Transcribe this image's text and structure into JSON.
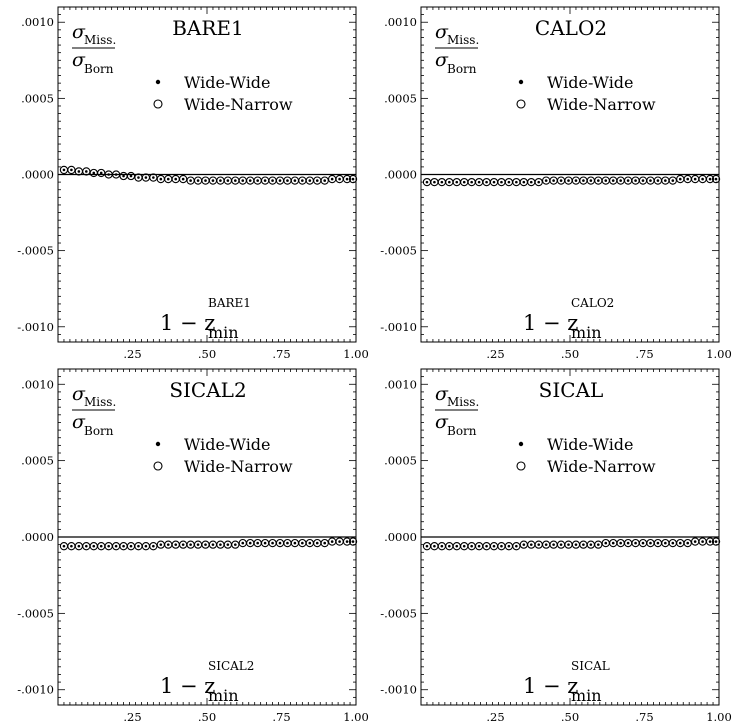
{
  "chart_data": [
    {
      "type": "scatter",
      "title": "BARE1",
      "ylabel_num": "σ",
      "ylabel_num_sub": "Miss.",
      "ylabel_den": "σ",
      "ylabel_den_sub": "Born",
      "xlabel_main": "1 − z",
      "xlabel_sub": "min",
      "xlabel_sup": "BARE1",
      "xlim": [
        0.0,
        1.0
      ],
      "ylim": [
        -0.0011,
        0.0011
      ],
      "xtick_labels": [
        ".25",
        ".50",
        ".75",
        "1.00"
      ],
      "xtick_values": [
        0.25,
        0.5,
        0.75,
        1.0
      ],
      "ytick_labels": [
        ".0010",
        ".0005",
        ".0000",
        "-.0005",
        "-.0010"
      ],
      "ytick_values": [
        0.001,
        0.0005,
        0.0,
        -0.0005,
        -0.001
      ],
      "legend_position": "top-center",
      "series": [
        {
          "name": "Wide-Wide",
          "marker": "dot",
          "x": [
            0.02,
            0.045,
            0.07,
            0.095,
            0.12,
            0.145,
            0.17,
            0.195,
            0.22,
            0.245,
            0.27,
            0.295,
            0.32,
            0.345,
            0.37,
            0.395,
            0.42,
            0.445,
            0.47,
            0.495,
            0.52,
            0.545,
            0.57,
            0.595,
            0.62,
            0.645,
            0.67,
            0.695,
            0.72,
            0.745,
            0.77,
            0.795,
            0.82,
            0.845,
            0.87,
            0.895,
            0.92,
            0.945,
            0.97,
            0.99
          ],
          "y": [
            3e-05,
            3e-05,
            2e-05,
            2e-05,
            1e-05,
            1e-05,
            0.0,
            0.0,
            -1e-05,
            -1e-05,
            -2e-05,
            -2e-05,
            -2e-05,
            -3e-05,
            -3e-05,
            -3e-05,
            -3e-05,
            -4e-05,
            -4e-05,
            -4e-05,
            -4e-05,
            -4e-05,
            -4e-05,
            -4e-05,
            -4e-05,
            -4e-05,
            -4e-05,
            -4e-05,
            -4e-05,
            -4e-05,
            -4e-05,
            -4e-05,
            -4e-05,
            -4e-05,
            -4e-05,
            -4e-05,
            -3e-05,
            -3e-05,
            -3e-05,
            -3e-05
          ]
        },
        {
          "name": "Wide-Narrow",
          "marker": "circle",
          "x": [
            0.02,
            0.045,
            0.07,
            0.095,
            0.12,
            0.145,
            0.17,
            0.195,
            0.22,
            0.245,
            0.27,
            0.295,
            0.32,
            0.345,
            0.37,
            0.395,
            0.42,
            0.445,
            0.47,
            0.495,
            0.52,
            0.545,
            0.57,
            0.595,
            0.62,
            0.645,
            0.67,
            0.695,
            0.72,
            0.745,
            0.77,
            0.795,
            0.82,
            0.845,
            0.87,
            0.895,
            0.92,
            0.945,
            0.97,
            0.99
          ],
          "y": [
            3e-05,
            3e-05,
            2e-05,
            2e-05,
            1e-05,
            1e-05,
            0.0,
            0.0,
            -1e-05,
            -1e-05,
            -2e-05,
            -2e-05,
            -2e-05,
            -3e-05,
            -3e-05,
            -3e-05,
            -3e-05,
            -4e-05,
            -4e-05,
            -4e-05,
            -4e-05,
            -4e-05,
            -4e-05,
            -4e-05,
            -4e-05,
            -4e-05,
            -4e-05,
            -4e-05,
            -4e-05,
            -4e-05,
            -4e-05,
            -4e-05,
            -4e-05,
            -4e-05,
            -4e-05,
            -4e-05,
            -3e-05,
            -3e-05,
            -3e-05,
            -3e-05
          ]
        }
      ]
    },
    {
      "type": "scatter",
      "title": "CALO2",
      "ylabel_num": "σ",
      "ylabel_num_sub": "Miss.",
      "ylabel_den": "σ",
      "ylabel_den_sub": "Born",
      "xlabel_main": "1 − z",
      "xlabel_sub": "min",
      "xlabel_sup": "CALO2",
      "xlim": [
        0.0,
        1.0
      ],
      "ylim": [
        -0.0011,
        0.0011
      ],
      "xtick_labels": [
        ".25",
        ".50",
        ".75",
        "1.00"
      ],
      "xtick_values": [
        0.25,
        0.5,
        0.75,
        1.0
      ],
      "ytick_labels": [
        ".0010",
        ".0005",
        ".0000",
        "-.0005",
        "-.0010"
      ],
      "ytick_values": [
        0.001,
        0.0005,
        0.0,
        -0.0005,
        -0.001
      ],
      "legend_position": "top-center",
      "series": [
        {
          "name": "Wide-Wide",
          "marker": "dot",
          "x": [
            0.02,
            0.045,
            0.07,
            0.095,
            0.12,
            0.145,
            0.17,
            0.195,
            0.22,
            0.245,
            0.27,
            0.295,
            0.32,
            0.345,
            0.37,
            0.395,
            0.42,
            0.445,
            0.47,
            0.495,
            0.52,
            0.545,
            0.57,
            0.595,
            0.62,
            0.645,
            0.67,
            0.695,
            0.72,
            0.745,
            0.77,
            0.795,
            0.82,
            0.845,
            0.87,
            0.895,
            0.92,
            0.945,
            0.97,
            0.99
          ],
          "y": [
            -5e-05,
            -5e-05,
            -5e-05,
            -5e-05,
            -5e-05,
            -5e-05,
            -5e-05,
            -5e-05,
            -5e-05,
            -5e-05,
            -5e-05,
            -5e-05,
            -5e-05,
            -5e-05,
            -5e-05,
            -5e-05,
            -4e-05,
            -4e-05,
            -4e-05,
            -4e-05,
            -4e-05,
            -4e-05,
            -4e-05,
            -4e-05,
            -4e-05,
            -4e-05,
            -4e-05,
            -4e-05,
            -4e-05,
            -4e-05,
            -4e-05,
            -4e-05,
            -4e-05,
            -4e-05,
            -3e-05,
            -3e-05,
            -3e-05,
            -3e-05,
            -3e-05,
            -3e-05
          ]
        },
        {
          "name": "Wide-Narrow",
          "marker": "circle",
          "x": [
            0.02,
            0.045,
            0.07,
            0.095,
            0.12,
            0.145,
            0.17,
            0.195,
            0.22,
            0.245,
            0.27,
            0.295,
            0.32,
            0.345,
            0.37,
            0.395,
            0.42,
            0.445,
            0.47,
            0.495,
            0.52,
            0.545,
            0.57,
            0.595,
            0.62,
            0.645,
            0.67,
            0.695,
            0.72,
            0.745,
            0.77,
            0.795,
            0.82,
            0.845,
            0.87,
            0.895,
            0.92,
            0.945,
            0.97,
            0.99
          ],
          "y": [
            -5e-05,
            -5e-05,
            -5e-05,
            -5e-05,
            -5e-05,
            -5e-05,
            -5e-05,
            -5e-05,
            -5e-05,
            -5e-05,
            -5e-05,
            -5e-05,
            -5e-05,
            -5e-05,
            -5e-05,
            -5e-05,
            -4e-05,
            -4e-05,
            -4e-05,
            -4e-05,
            -4e-05,
            -4e-05,
            -4e-05,
            -4e-05,
            -4e-05,
            -4e-05,
            -4e-05,
            -4e-05,
            -4e-05,
            -4e-05,
            -4e-05,
            -4e-05,
            -4e-05,
            -4e-05,
            -3e-05,
            -3e-05,
            -3e-05,
            -3e-05,
            -3e-05,
            -3e-05
          ]
        }
      ]
    },
    {
      "type": "scatter",
      "title": "SICAL2",
      "ylabel_num": "σ",
      "ylabel_num_sub": "Miss.",
      "ylabel_den": "σ",
      "ylabel_den_sub": "Born",
      "xlabel_main": "1 − z",
      "xlabel_sub": "min",
      "xlabel_sup": "SICAL2",
      "xlim": [
        0.0,
        1.0
      ],
      "ylim": [
        -0.0011,
        0.0011
      ],
      "xtick_labels": [
        ".25",
        ".50",
        ".75",
        "1.00"
      ],
      "xtick_values": [
        0.25,
        0.5,
        0.75,
        1.0
      ],
      "ytick_labels": [
        ".0010",
        ".0005",
        ".0000",
        "-.0005",
        "-.0010"
      ],
      "ytick_values": [
        0.001,
        0.0005,
        0.0,
        -0.0005,
        -0.001
      ],
      "legend_position": "top-center",
      "series": [
        {
          "name": "Wide-Wide",
          "marker": "dot",
          "x": [
            0.02,
            0.045,
            0.07,
            0.095,
            0.12,
            0.145,
            0.17,
            0.195,
            0.22,
            0.245,
            0.27,
            0.295,
            0.32,
            0.345,
            0.37,
            0.395,
            0.42,
            0.445,
            0.47,
            0.495,
            0.52,
            0.545,
            0.57,
            0.595,
            0.62,
            0.645,
            0.67,
            0.695,
            0.72,
            0.745,
            0.77,
            0.795,
            0.82,
            0.845,
            0.87,
            0.895,
            0.92,
            0.945,
            0.97,
            0.99
          ],
          "y": [
            -6e-05,
            -6e-05,
            -6e-05,
            -6e-05,
            -6e-05,
            -6e-05,
            -6e-05,
            -6e-05,
            -6e-05,
            -6e-05,
            -6e-05,
            -6e-05,
            -6e-05,
            -5e-05,
            -5e-05,
            -5e-05,
            -5e-05,
            -5e-05,
            -5e-05,
            -5e-05,
            -5e-05,
            -5e-05,
            -5e-05,
            -5e-05,
            -4e-05,
            -4e-05,
            -4e-05,
            -4e-05,
            -4e-05,
            -4e-05,
            -4e-05,
            -4e-05,
            -4e-05,
            -4e-05,
            -4e-05,
            -4e-05,
            -3e-05,
            -3e-05,
            -3e-05,
            -3e-05
          ]
        },
        {
          "name": "Wide-Narrow",
          "marker": "circle",
          "x": [
            0.02,
            0.045,
            0.07,
            0.095,
            0.12,
            0.145,
            0.17,
            0.195,
            0.22,
            0.245,
            0.27,
            0.295,
            0.32,
            0.345,
            0.37,
            0.395,
            0.42,
            0.445,
            0.47,
            0.495,
            0.52,
            0.545,
            0.57,
            0.595,
            0.62,
            0.645,
            0.67,
            0.695,
            0.72,
            0.745,
            0.77,
            0.795,
            0.82,
            0.845,
            0.87,
            0.895,
            0.92,
            0.945,
            0.97,
            0.99
          ],
          "y": [
            -6e-05,
            -6e-05,
            -6e-05,
            -6e-05,
            -6e-05,
            -6e-05,
            -6e-05,
            -6e-05,
            -6e-05,
            -6e-05,
            -6e-05,
            -6e-05,
            -6e-05,
            -5e-05,
            -5e-05,
            -5e-05,
            -5e-05,
            -5e-05,
            -5e-05,
            -5e-05,
            -5e-05,
            -5e-05,
            -5e-05,
            -5e-05,
            -4e-05,
            -4e-05,
            -4e-05,
            -4e-05,
            -4e-05,
            -4e-05,
            -4e-05,
            -4e-05,
            -4e-05,
            -4e-05,
            -4e-05,
            -4e-05,
            -3e-05,
            -3e-05,
            -3e-05,
            -3e-05
          ]
        }
      ]
    },
    {
      "type": "scatter",
      "title": "SICAL",
      "ylabel_num": "σ",
      "ylabel_num_sub": "Miss.",
      "ylabel_den": "σ",
      "ylabel_den_sub": "Born",
      "xlabel_main": "1 − z",
      "xlabel_sub": "min",
      "xlabel_sup": "SICAL",
      "xlim": [
        0.0,
        1.0
      ],
      "ylim": [
        -0.0011,
        0.0011
      ],
      "xtick_labels": [
        ".25",
        ".50",
        ".75",
        "1.00"
      ],
      "xtick_values": [
        0.25,
        0.5,
        0.75,
        1.0
      ],
      "ytick_labels": [
        ".0010",
        ".0005",
        ".0000",
        "-.0005",
        "-.0010"
      ],
      "ytick_values": [
        0.001,
        0.0005,
        0.0,
        -0.0005,
        -0.001
      ],
      "legend_position": "top-center",
      "series": [
        {
          "name": "Wide-Wide",
          "marker": "dot",
          "x": [
            0.02,
            0.045,
            0.07,
            0.095,
            0.12,
            0.145,
            0.17,
            0.195,
            0.22,
            0.245,
            0.27,
            0.295,
            0.32,
            0.345,
            0.37,
            0.395,
            0.42,
            0.445,
            0.47,
            0.495,
            0.52,
            0.545,
            0.57,
            0.595,
            0.62,
            0.645,
            0.67,
            0.695,
            0.72,
            0.745,
            0.77,
            0.795,
            0.82,
            0.845,
            0.87,
            0.895,
            0.92,
            0.945,
            0.97,
            0.99
          ],
          "y": [
            -6e-05,
            -6e-05,
            -6e-05,
            -6e-05,
            -6e-05,
            -6e-05,
            -6e-05,
            -6e-05,
            -6e-05,
            -6e-05,
            -6e-05,
            -6e-05,
            -6e-05,
            -5e-05,
            -5e-05,
            -5e-05,
            -5e-05,
            -5e-05,
            -5e-05,
            -5e-05,
            -5e-05,
            -5e-05,
            -5e-05,
            -5e-05,
            -4e-05,
            -4e-05,
            -4e-05,
            -4e-05,
            -4e-05,
            -4e-05,
            -4e-05,
            -4e-05,
            -4e-05,
            -4e-05,
            -4e-05,
            -4e-05,
            -3e-05,
            -3e-05,
            -3e-05,
            -3e-05
          ]
        },
        {
          "name": "Wide-Narrow",
          "marker": "circle",
          "x": [
            0.02,
            0.045,
            0.07,
            0.095,
            0.12,
            0.145,
            0.17,
            0.195,
            0.22,
            0.245,
            0.27,
            0.295,
            0.32,
            0.345,
            0.37,
            0.395,
            0.42,
            0.445,
            0.47,
            0.495,
            0.52,
            0.545,
            0.57,
            0.595,
            0.62,
            0.645,
            0.67,
            0.695,
            0.72,
            0.745,
            0.77,
            0.795,
            0.82,
            0.845,
            0.87,
            0.895,
            0.92,
            0.945,
            0.97,
            0.99
          ],
          "y": [
            -6e-05,
            -6e-05,
            -6e-05,
            -6e-05,
            -6e-05,
            -6e-05,
            -6e-05,
            -6e-05,
            -6e-05,
            -6e-05,
            -6e-05,
            -6e-05,
            -6e-05,
            -5e-05,
            -5e-05,
            -5e-05,
            -5e-05,
            -5e-05,
            -5e-05,
            -5e-05,
            -5e-05,
            -5e-05,
            -5e-05,
            -5e-05,
            -4e-05,
            -4e-05,
            -4e-05,
            -4e-05,
            -4e-05,
            -4e-05,
            -4e-05,
            -4e-05,
            -4e-05,
            -4e-05,
            -4e-05,
            -4e-05,
            -3e-05,
            -3e-05,
            -3e-05,
            -3e-05
          ]
        }
      ]
    }
  ]
}
